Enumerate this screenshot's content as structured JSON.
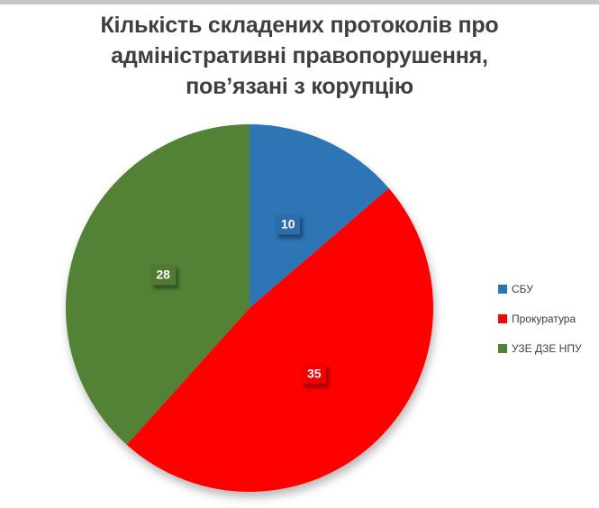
{
  "page": {
    "background_color": "#FFFFFF",
    "top_bar_color": "#C6C6C6",
    "title_color": "#3F3F3F",
    "legend_text_color": "#404040",
    "data_label_text_color": "#FFFFFF"
  },
  "chart_data": {
    "type": "pie",
    "title": "Кількість складених протоколів про адміністративні правопорушення, пов’язані з корупцію",
    "title_lines": [
      "Кількість складених протоколів про",
      "адміністративні правопорушення,",
      "пов’язані з корупцію"
    ],
    "categories": [
      "СБУ",
      "Прокуратура",
      "УЗЕ ДЗЕ НПУ"
    ],
    "values": [
      10,
      35,
      28
    ],
    "colors": [
      "#2E75B6",
      "#FF0000",
      "#538135"
    ],
    "total": 73,
    "start_angle_deg": 0,
    "direction": "clockwise",
    "data_labels_shown": true,
    "legend_position": "right"
  }
}
